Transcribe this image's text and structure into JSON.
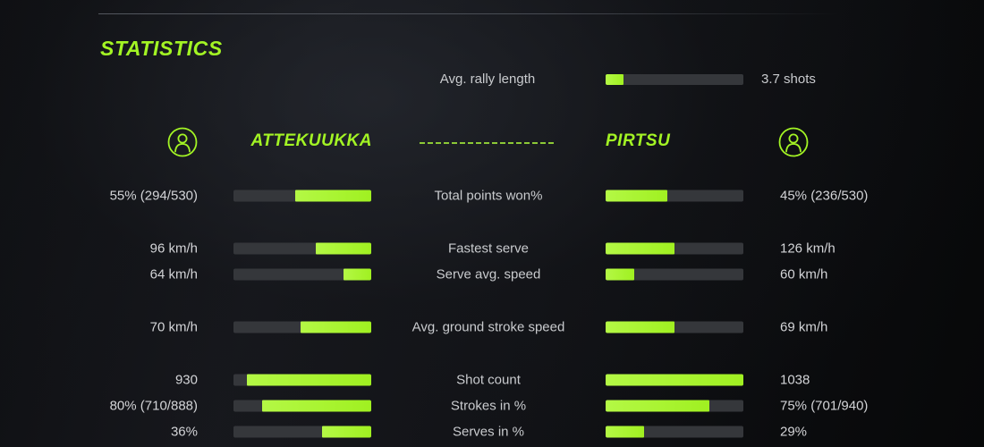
{
  "colors": {
    "accent_green": "#a3f424",
    "divider_green": "#8cc936",
    "bar_track": "#35373b",
    "label_text": "#c9cbce",
    "value_text": "#d3d4d7",
    "background_dark": "#101114"
  },
  "header": {
    "title": "STATISTICS"
  },
  "summary": {
    "label": "Avg. rally length",
    "value": "3.7 shots",
    "fill_percent": 13
  },
  "players": {
    "left": {
      "name": "ATTEKUUKKA",
      "icon": "person-icon"
    },
    "right": {
      "name": "PIRTSU",
      "icon": "person-icon"
    }
  },
  "stats": {
    "rows": [
      {
        "label": "Total points won%",
        "left_value": "55% (294/530)",
        "right_value": "45% (236/530)",
        "left_fill_percent": 55,
        "right_fill_percent": 45
      },
      {
        "label": "Fastest serve",
        "left_value": "96 km/h",
        "right_value": "126 km/h",
        "left_fill_percent": 40,
        "right_fill_percent": 50
      },
      {
        "label": "Serve avg. speed",
        "left_value": "64 km/h",
        "right_value": "60 km/h",
        "left_fill_percent": 20,
        "right_fill_percent": 21
      },
      {
        "label": "Avg. ground stroke speed",
        "left_value": "70 km/h",
        "right_value": "69 km/h",
        "left_fill_percent": 51,
        "right_fill_percent": 50
      },
      {
        "label": "Shot count",
        "left_value": "930",
        "right_value": "1038",
        "left_fill_percent": 90,
        "right_fill_percent": 100
      },
      {
        "label": "Strokes in %",
        "left_value": "80% (710/888)",
        "right_value": "75% (701/940)",
        "left_fill_percent": 79,
        "right_fill_percent": 75
      },
      {
        "label": "Serves in %",
        "left_value": "36%",
        "right_value": "29%",
        "left_fill_percent": 36,
        "right_fill_percent": 28
      }
    ]
  },
  "chart_data": {
    "type": "bar",
    "title": "STATISTICS",
    "subtitle": "Avg. rally length: 3.7 shots",
    "categories": [
      "Total points won%",
      "Fastest serve",
      "Serve avg. speed",
      "Avg. ground stroke speed",
      "Shot count",
      "Strokes in %",
      "Serves in %"
    ],
    "series": [
      {
        "name": "ATTEKUUKKA",
        "values": [
          55,
          96,
          64,
          70,
          930,
          80,
          36
        ]
      },
      {
        "name": "PIRTSU",
        "values": [
          45,
          126,
          60,
          69,
          1038,
          75,
          29
        ]
      }
    ],
    "layout": "mirrored horizontal bars, labels centered between players",
    "legend_position": "top"
  }
}
